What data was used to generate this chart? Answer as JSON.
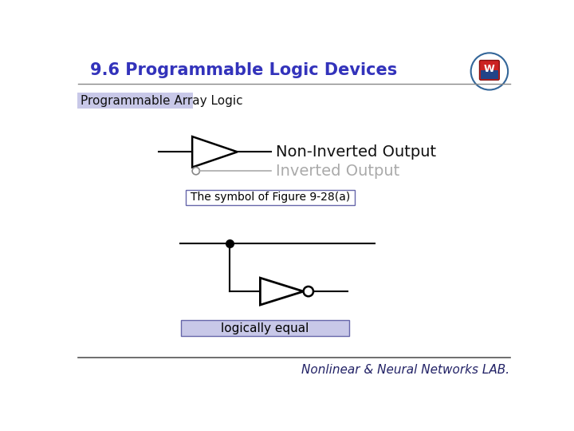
{
  "title": "9.6 Programmable Logic Devices",
  "subtitle": "Programmable Array Logic",
  "label_figure": "The symbol of Figure 9-28(a)",
  "label_equal": "logically equal",
  "label_non_inverted": "Non-Inverted Output",
  "label_inverted": "Inverted Output",
  "footer": "Nonlinear & Neural Networks LAB.",
  "title_color": "#3333BB",
  "subtitle_bg": "#C8C8E8",
  "label_fig_bg": "#FFFFFF",
  "label_eq_bg": "#C8C8E8",
  "line_color": "#000000",
  "gray_color": "#AAAAAA",
  "bg_color": "#FFFFFF",
  "title_fontsize": 15,
  "subtitle_fontsize": 11,
  "body_fontsize": 14,
  "footer_fontsize": 11
}
